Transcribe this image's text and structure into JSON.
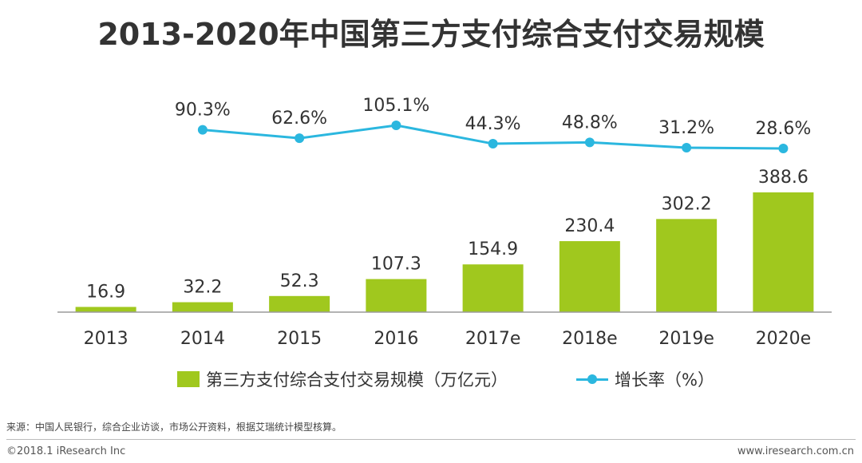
{
  "title": "2013-2020年中国第三方支付综合支付交易规模",
  "chart_data": {
    "type": "bar+line",
    "categories": [
      "2013",
      "2014",
      "2015",
      "2016",
      "2017e",
      "2018e",
      "2019e",
      "2020e"
    ],
    "series": [
      {
        "name": "第三方支付综合支付交易规模（万亿元）",
        "type": "bar",
        "values": [
          16.9,
          32.2,
          52.3,
          107.3,
          154.9,
          230.4,
          302.2,
          388.6
        ],
        "labels": [
          "16.9",
          "32.2",
          "52.3",
          "107.3",
          "154.9",
          "230.4",
          "302.2",
          "388.6"
        ],
        "color": "#a0c81e"
      },
      {
        "name": "增长率（%）",
        "type": "line",
        "values": [
          null,
          90.3,
          62.6,
          105.1,
          44.3,
          48.8,
          31.2,
          28.6
        ],
        "labels": [
          null,
          "90.3%",
          "62.6%",
          "105.1%",
          "44.3%",
          "48.8%",
          "31.2%",
          "28.6%"
        ],
        "color": "#2bb7df"
      }
    ],
    "ylim_bar": [
      0,
      388.6
    ],
    "ylim_line": [
      0,
      105.1
    ]
  },
  "legend": {
    "bar_label": "第三方支付综合支付交易规模（万亿元）",
    "line_label": "增长率（%）"
  },
  "footer": {
    "source": "来源：中国人民银行，综合企业访谈，市场公开资料，根据艾瑞统计模型核算。",
    "copyright": "©2018.1 iResearch Inc",
    "website": "www.iresearch.com.cn"
  }
}
